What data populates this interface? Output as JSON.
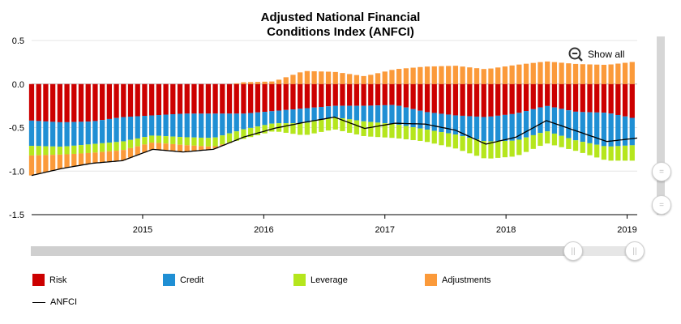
{
  "chart_data": {
    "type": "area",
    "title_line1": "Adjusted National Financial",
    "title_line2": "Conditions Index (ANFCI)",
    "xlabel": "",
    "ylabel": "",
    "x_range": [
      "2014-02",
      "2019-02"
    ],
    "ylim": [
      -1.5,
      0.5
    ],
    "y_ticks": [
      "0.5",
      "0.0",
      "-0.5",
      "-1.0",
      "-1.5"
    ],
    "x_ticks": [
      "2015",
      "2016",
      "2017",
      "2018",
      "2019"
    ],
    "grid": "horizontal",
    "legend_position": "bottom",
    "x": [
      "2014-02",
      "2014-05",
      "2014-08",
      "2014-11",
      "2015-02",
      "2015-05",
      "2015-08",
      "2015-11",
      "2016-02",
      "2016-05",
      "2016-08",
      "2016-11",
      "2017-02",
      "2017-05",
      "2017-08",
      "2017-11",
      "2018-02",
      "2018-05",
      "2018-08",
      "2018-11",
      "2019-02"
    ],
    "series": [
      {
        "name": "Risk",
        "color": "#cc0000",
        "values": [
          -0.42,
          -0.44,
          -0.43,
          -0.38,
          -0.36,
          -0.34,
          -0.34,
          -0.34,
          -0.31,
          -0.28,
          -0.25,
          -0.25,
          -0.24,
          -0.32,
          -0.36,
          -0.38,
          -0.34,
          -0.25,
          -0.32,
          -0.33,
          -0.4
        ]
      },
      {
        "name": "Credit",
        "color": "#1f8fd4",
        "values": [
          -0.29,
          -0.28,
          -0.26,
          -0.28,
          -0.23,
          -0.27,
          -0.28,
          -0.18,
          -0.14,
          -0.17,
          -0.13,
          -0.18,
          -0.22,
          -0.2,
          -0.22,
          -0.28,
          -0.31,
          -0.29,
          -0.33,
          -0.39,
          -0.3
        ]
      },
      {
        "name": "Leverage",
        "color": "#b5e61d",
        "values": [
          -0.11,
          -0.09,
          -0.1,
          -0.1,
          -0.08,
          -0.09,
          -0.1,
          -0.11,
          -0.09,
          -0.14,
          -0.14,
          -0.17,
          -0.16,
          -0.14,
          -0.16,
          -0.2,
          -0.18,
          -0.14,
          -0.12,
          -0.16,
          -0.18
        ]
      },
      {
        "name": "Adjustments",
        "color": "#fb9a3a",
        "values": [
          -0.23,
          -0.16,
          -0.12,
          -0.12,
          -0.08,
          -0.08,
          -0.03,
          0.02,
          0.03,
          0.15,
          0.14,
          0.09,
          0.17,
          0.2,
          0.21,
          0.17,
          0.22,
          0.26,
          0.23,
          0.22,
          0.26
        ]
      }
    ],
    "line": {
      "name": "ANFCI",
      "color": "#000000",
      "values": [
        -1.05,
        -0.97,
        -0.91,
        -0.88,
        -0.75,
        -0.78,
        -0.75,
        -0.61,
        -0.51,
        -0.44,
        -0.38,
        -0.51,
        -0.45,
        -0.46,
        -0.53,
        -0.69,
        -0.61,
        -0.42,
        -0.54,
        -0.66,
        -0.62
      ]
    }
  },
  "controls": {
    "show_all_label": "Show all"
  },
  "legend": {
    "risk": "Risk",
    "credit": "Credit",
    "leverage": "Leverage",
    "adjustments": "Adjustments",
    "anfci": "ANFCI"
  }
}
